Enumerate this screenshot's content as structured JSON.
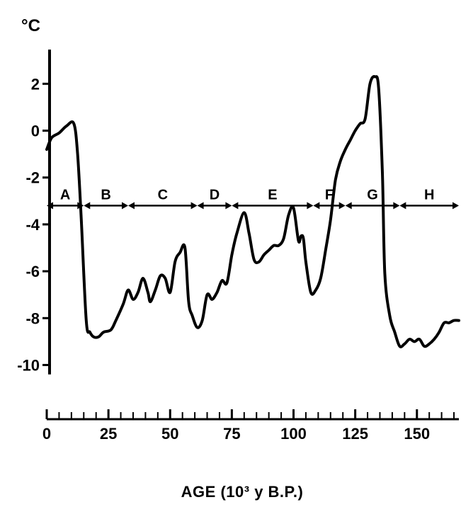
{
  "chart_data": {
    "type": "line",
    "unit_label": "°C",
    "xlabel": "AGE (10³ y B.P.)",
    "ylabel": "",
    "xlim": [
      0,
      167
    ],
    "ylim": [
      -10.5,
      3.4
    ],
    "x_ticks": [
      0,
      25,
      50,
      75,
      100,
      125,
      150
    ],
    "x_minor_step": 5,
    "y_ticks": [
      2,
      0,
      -2,
      -4,
      -6,
      -8,
      -10
    ],
    "series": [
      {
        "name": "",
        "x": [
          0,
          2,
          5,
          8,
          11,
          12.5,
          14,
          16,
          17.5,
          19,
          21,
          23,
          26,
          28,
          31,
          33,
          35,
          37,
          39,
          41,
          42,
          44,
          46,
          48,
          50,
          52,
          54,
          56,
          57.5,
          59,
          61,
          63,
          65,
          67,
          69,
          71,
          73,
          75,
          77,
          80,
          82,
          84,
          86,
          88,
          90,
          92,
          94,
          96,
          98,
          100,
          102,
          103,
          104,
          105,
          107,
          109,
          111,
          113,
          115,
          117,
          119,
          121,
          123,
          125,
          127,
          129,
          131,
          133,
          134.5,
          136,
          137,
          139,
          141,
          143,
          145,
          147,
          149,
          151,
          153,
          155,
          157,
          159,
          161,
          163,
          165,
          167
        ],
        "y": [
          -0.8,
          -0.3,
          -0.1,
          0.2,
          0.3,
          -1.0,
          -3.8,
          -8.1,
          -8.6,
          -8.8,
          -8.8,
          -8.6,
          -8.5,
          -8.1,
          -7.4,
          -6.8,
          -7.2,
          -6.9,
          -6.3,
          -6.9,
          -7.3,
          -6.8,
          -6.2,
          -6.3,
          -6.9,
          -5.6,
          -5.2,
          -5.0,
          -7.3,
          -7.9,
          -8.4,
          -8.1,
          -7.0,
          -7.2,
          -6.9,
          -6.4,
          -6.5,
          -5.3,
          -4.4,
          -3.5,
          -4.4,
          -5.5,
          -5.6,
          -5.3,
          -5.1,
          -4.9,
          -4.9,
          -4.6,
          -3.6,
          -3.3,
          -4.7,
          -4.5,
          -4.6,
          -5.6,
          -6.9,
          -6.8,
          -6.3,
          -5.1,
          -3.8,
          -2.1,
          -1.3,
          -0.8,
          -0.4,
          0.0,
          0.3,
          0.5,
          2.0,
          2.3,
          1.8,
          -1.8,
          -6.1,
          -7.9,
          -8.6,
          -9.2,
          -9.1,
          -8.9,
          -9.0,
          -8.9,
          -9.2,
          -9.1,
          -8.9,
          -8.6,
          -8.2,
          -8.2,
          -8.1,
          -8.1
        ]
      }
    ],
    "stages": [
      {
        "label": "A",
        "start": 0,
        "end": 15
      },
      {
        "label": "B",
        "start": 15,
        "end": 33
      },
      {
        "label": "C",
        "start": 33,
        "end": 61
      },
      {
        "label": "D",
        "start": 61,
        "end": 75
      },
      {
        "label": "E",
        "start": 75,
        "end": 108
      },
      {
        "label": "F",
        "start": 108,
        "end": 121
      },
      {
        "label": "G",
        "start": 121,
        "end": 143
      },
      {
        "label": "H",
        "start": 143,
        "end": 167
      }
    ],
    "stage_level": -3.2,
    "grid": false,
    "legend": "none"
  }
}
